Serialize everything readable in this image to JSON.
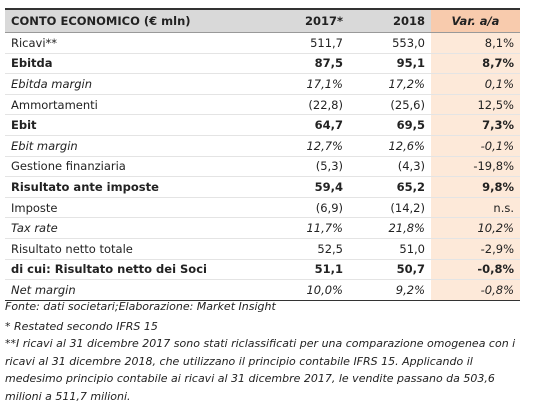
{
  "table": {
    "header": [
      "CONTO ECONOMICO (€ mln)",
      "2017*",
      "2018",
      "Var. a/a"
    ],
    "rows": [
      [
        "Ricavi**",
        "511,7",
        "553,0",
        "8,1%"
      ],
      [
        "Ebitda",
        "87,5",
        "95,1",
        "8,7%"
      ],
      [
        "Ebitda margin",
        "17,1%",
        "17,2%",
        "0,1%"
      ],
      [
        "Ammortamenti",
        "(22,8)",
        "(25,6)",
        "12,5%"
      ],
      [
        "Ebit",
        "64,7",
        "69,5",
        "7,3%"
      ],
      [
        "Ebit margin",
        "12,7%",
        "12,6%",
        "-0,1%"
      ],
      [
        "Gestione finanziaria",
        "(5,3)",
        "(4,3)",
        "-19,8%"
      ],
      [
        "Risultato ante imposte",
        "59,4",
        "65,2",
        "9,8%"
      ],
      [
        "Imposte",
        "(6,9)",
        "(14,2)",
        "n.s."
      ],
      [
        "Tax rate",
        "11,7%",
        "21,8%",
        "10,2%"
      ],
      [
        "Risultato netto totale",
        "52,5",
        "51,0",
        "-2,9%"
      ],
      [
        "di cui: Risultato netto dei Soci",
        "51,1",
        "50,7",
        "-0,8%"
      ],
      [
        "Net margin",
        "10,0%",
        "9,2%",
        "-0,8%"
      ]
    ]
  },
  "notes": [
    "Fonte: dati societari;Elaborazione: Market Insight",
    "* Restated secondo IFRS 15",
    "**I ricavi al 31 dicembre 2017 sono stati riclassificati per una comparazione omogenea con i ricavi al 31 dicembre 2018, che utilizzano il principio contabile IFRS 15. Applicando il medesimo principio contabile ai ricavi al 31 dicembre 2017, le vendite passano da 503,6 milioni a 511,7 milioni."
  ]
}
